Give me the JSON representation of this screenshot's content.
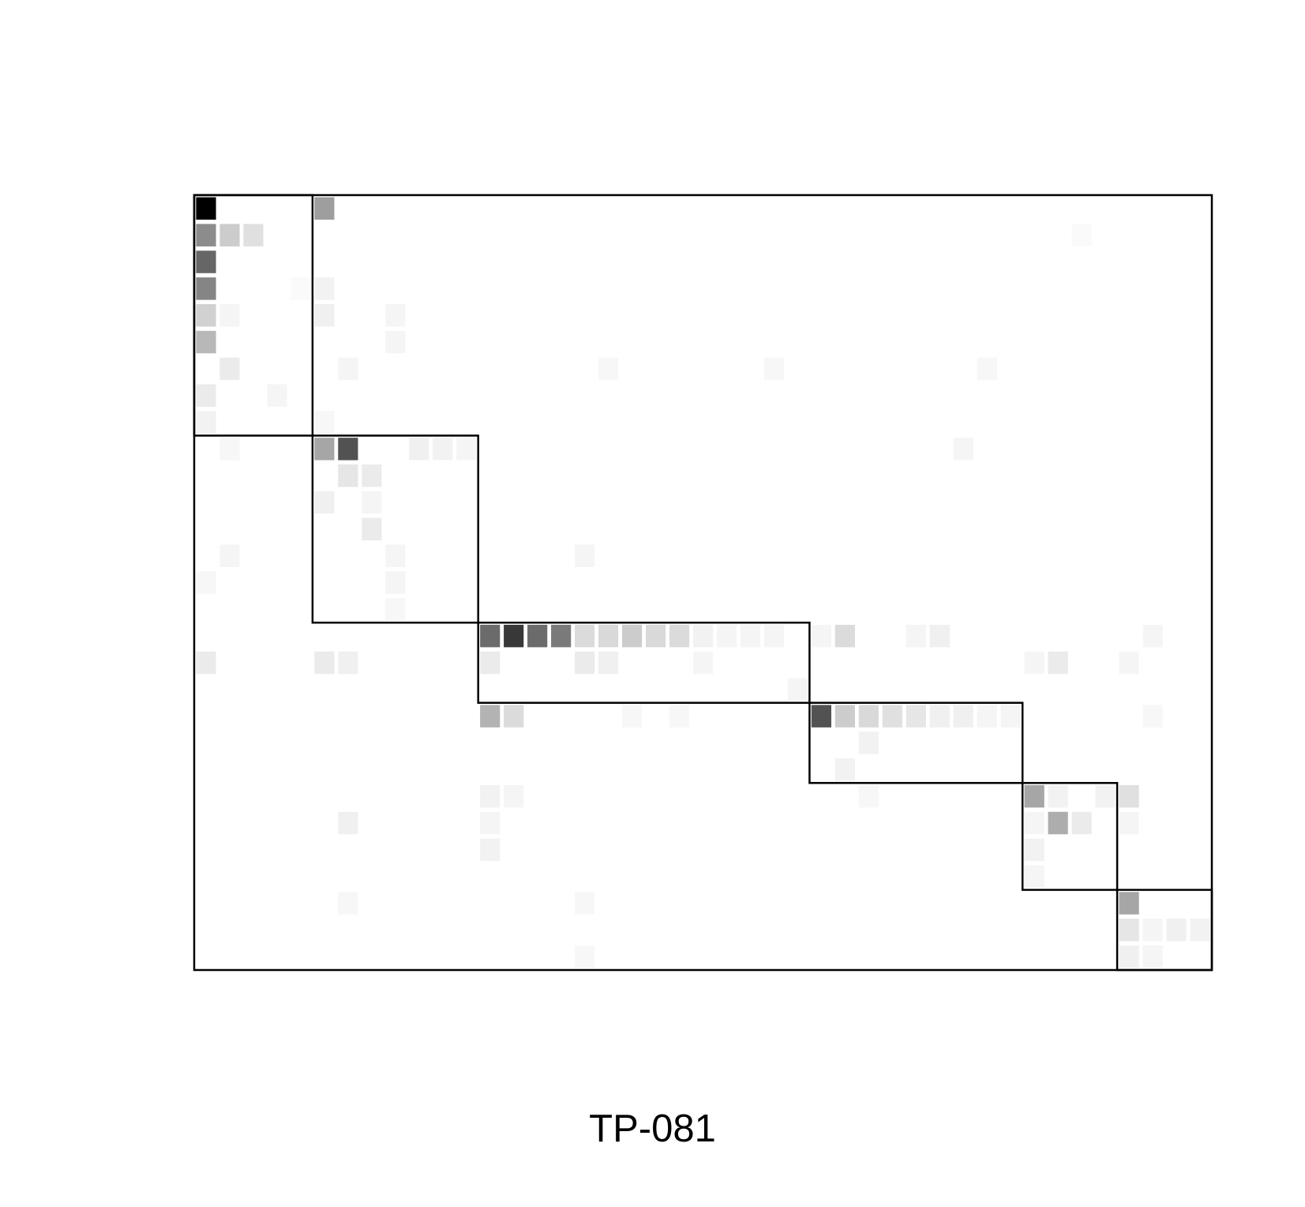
{
  "caption": "TP-081",
  "chart_data": {
    "type": "heatmap",
    "title": "",
    "xlabel": "",
    "ylabel": "",
    "n_rows": 29,
    "n_cols": 43,
    "color_scale": "white-to-black",
    "colors": {
      "low": "#ffffff",
      "high": "#000000",
      "border": "#000000"
    },
    "blocks": [
      {
        "row_start": 0,
        "row_end": 9,
        "col_start": 0,
        "col_end": 5
      },
      {
        "row_start": 9,
        "row_end": 16,
        "col_start": 5,
        "col_end": 12
      },
      {
        "row_start": 16,
        "row_end": 19,
        "col_start": 12,
        "col_end": 26
      },
      {
        "row_start": 19,
        "row_end": 22,
        "col_start": 26,
        "col_end": 35
      },
      {
        "row_start": 22,
        "row_end": 26,
        "col_start": 35,
        "col_end": 39
      },
      {
        "row_start": 26,
        "row_end": 29,
        "col_start": 39,
        "col_end": 43
      }
    ],
    "cells": [
      [
        0,
        0,
        1.0
      ],
      [
        0,
        5,
        0.38
      ],
      [
        1,
        0,
        0.45
      ],
      [
        1,
        1,
        0.2
      ],
      [
        1,
        2,
        0.12
      ],
      [
        1,
        37,
        0.02
      ],
      [
        2,
        0,
        0.6
      ],
      [
        3,
        0,
        0.48
      ],
      [
        3,
        4,
        0.02
      ],
      [
        3,
        5,
        0.05
      ],
      [
        4,
        0,
        0.18
      ],
      [
        4,
        1,
        0.04
      ],
      [
        4,
        5,
        0.06
      ],
      [
        4,
        8,
        0.04
      ],
      [
        5,
        0,
        0.28
      ],
      [
        5,
        8,
        0.04
      ],
      [
        6,
        1,
        0.08
      ],
      [
        6,
        6,
        0.04
      ],
      [
        6,
        17,
        0.03
      ],
      [
        6,
        24,
        0.03
      ],
      [
        6,
        33,
        0.03
      ],
      [
        7,
        0,
        0.08
      ],
      [
        7,
        3,
        0.04
      ],
      [
        8,
        0,
        0.05
      ],
      [
        8,
        5,
        0.03
      ],
      [
        9,
        1,
        0.03
      ],
      [
        9,
        5,
        0.35
      ],
      [
        9,
        6,
        0.68
      ],
      [
        9,
        9,
        0.06
      ],
      [
        9,
        10,
        0.05
      ],
      [
        9,
        11,
        0.04
      ],
      [
        9,
        32,
        0.04
      ],
      [
        10,
        6,
        0.1
      ],
      [
        10,
        7,
        0.08
      ],
      [
        11,
        5,
        0.06
      ],
      [
        11,
        7,
        0.04
      ],
      [
        12,
        7,
        0.08
      ],
      [
        13,
        1,
        0.04
      ],
      [
        13,
        8,
        0.04
      ],
      [
        13,
        16,
        0.04
      ],
      [
        14,
        0,
        0.03
      ],
      [
        14,
        8,
        0.04
      ],
      [
        15,
        8,
        0.03
      ],
      [
        16,
        12,
        0.58
      ],
      [
        16,
        13,
        0.78
      ],
      [
        16,
        14,
        0.58
      ],
      [
        16,
        15,
        0.52
      ],
      [
        16,
        16,
        0.14
      ],
      [
        16,
        17,
        0.15
      ],
      [
        16,
        18,
        0.2
      ],
      [
        16,
        19,
        0.15
      ],
      [
        16,
        20,
        0.14
      ],
      [
        16,
        21,
        0.05
      ],
      [
        16,
        22,
        0.04
      ],
      [
        16,
        23,
        0.04
      ],
      [
        16,
        24,
        0.04
      ],
      [
        16,
        26,
        0.04
      ],
      [
        16,
        27,
        0.14
      ],
      [
        16,
        30,
        0.04
      ],
      [
        16,
        31,
        0.06
      ],
      [
        16,
        40,
        0.04
      ],
      [
        17,
        0,
        0.08
      ],
      [
        17,
        5,
        0.08
      ],
      [
        17,
        6,
        0.06
      ],
      [
        17,
        12,
        0.08
      ],
      [
        17,
        16,
        0.08
      ],
      [
        17,
        17,
        0.06
      ],
      [
        17,
        21,
        0.04
      ],
      [
        17,
        35,
        0.04
      ],
      [
        17,
        36,
        0.08
      ],
      [
        17,
        39,
        0.04
      ],
      [
        18,
        25,
        0.04
      ],
      [
        19,
        12,
        0.3
      ],
      [
        19,
        13,
        0.14
      ],
      [
        19,
        18,
        0.03
      ],
      [
        19,
        20,
        0.03
      ],
      [
        19,
        26,
        0.68
      ],
      [
        19,
        27,
        0.2
      ],
      [
        19,
        28,
        0.15
      ],
      [
        19,
        29,
        0.12
      ],
      [
        19,
        30,
        0.1
      ],
      [
        19,
        31,
        0.06
      ],
      [
        19,
        32,
        0.06
      ],
      [
        19,
        33,
        0.04
      ],
      [
        19,
        34,
        0.04
      ],
      [
        19,
        40,
        0.03
      ],
      [
        20,
        28,
        0.05
      ],
      [
        21,
        27,
        0.05
      ],
      [
        22,
        12,
        0.05
      ],
      [
        22,
        13,
        0.04
      ],
      [
        22,
        28,
        0.03
      ],
      [
        22,
        35,
        0.35
      ],
      [
        22,
        36,
        0.05
      ],
      [
        22,
        38,
        0.05
      ],
      [
        22,
        39,
        0.12
      ],
      [
        23,
        6,
        0.06
      ],
      [
        23,
        12,
        0.04
      ],
      [
        23,
        35,
        0.04
      ],
      [
        23,
        36,
        0.32
      ],
      [
        23,
        37,
        0.08
      ],
      [
        23,
        39,
        0.04
      ],
      [
        24,
        12,
        0.05
      ],
      [
        24,
        35,
        0.05
      ],
      [
        25,
        35,
        0.04
      ],
      [
        26,
        6,
        0.03
      ],
      [
        26,
        16,
        0.03
      ],
      [
        26,
        39,
        0.35
      ],
      [
        27,
        39,
        0.1
      ],
      [
        27,
        40,
        0.04
      ],
      [
        27,
        41,
        0.06
      ],
      [
        27,
        42,
        0.05
      ],
      [
        28,
        16,
        0.03
      ],
      [
        28,
        39,
        0.06
      ],
      [
        28,
        40,
        0.04
      ]
    ]
  }
}
